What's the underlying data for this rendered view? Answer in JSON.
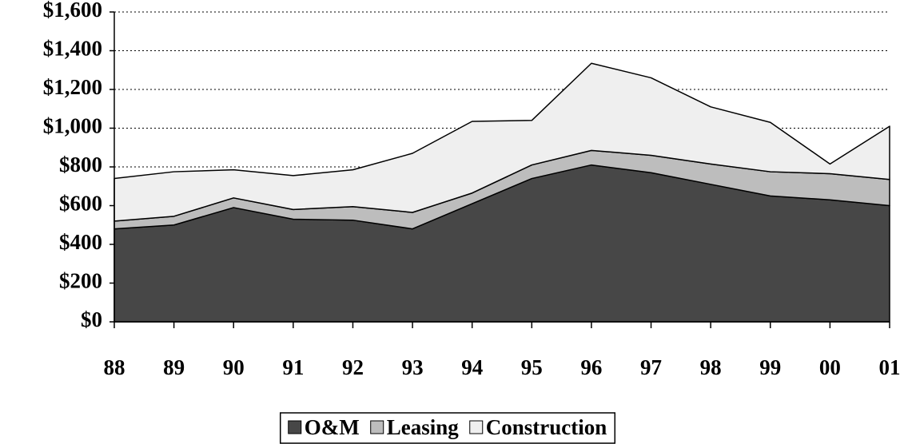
{
  "chart_data": {
    "type": "stacked_area",
    "categories": [
      "88",
      "89",
      "90",
      "91",
      "92",
      "93",
      "94",
      "95",
      "96",
      "97",
      "98",
      "99",
      "00",
      "01"
    ],
    "series": [
      {
        "name": "O&M",
        "color": "#474747",
        "values": [
          480,
          500,
          590,
          530,
          525,
          480,
          610,
          740,
          810,
          770,
          710,
          650,
          630,
          600
        ]
      },
      {
        "name": "Leasing",
        "color": "#bdbdbd",
        "values": [
          40,
          45,
          50,
          50,
          70,
          85,
          55,
          70,
          75,
          90,
          105,
          125,
          135,
          135
        ]
      },
      {
        "name": "Construction",
        "color": "#efefef",
        "values": [
          220,
          230,
          145,
          175,
          190,
          305,
          370,
          230,
          450,
          400,
          295,
          255,
          50,
          275
        ]
      }
    ],
    "ylim": [
      0,
      1600
    ],
    "yticks": [
      {
        "value": 0,
        "label": "$0"
      },
      {
        "value": 200,
        "label": "$200"
      },
      {
        "value": 400,
        "label": "$400"
      },
      {
        "value": 600,
        "label": "$600"
      },
      {
        "value": 800,
        "label": "$800"
      },
      {
        "value": 1000,
        "label": "$1,000"
      },
      {
        "value": 1200,
        "label": "$1,200"
      },
      {
        "value": 1400,
        "label": "$1,400"
      },
      {
        "value": 1600,
        "label": "$1,600"
      }
    ],
    "grid": true,
    "legend": "bottom"
  }
}
